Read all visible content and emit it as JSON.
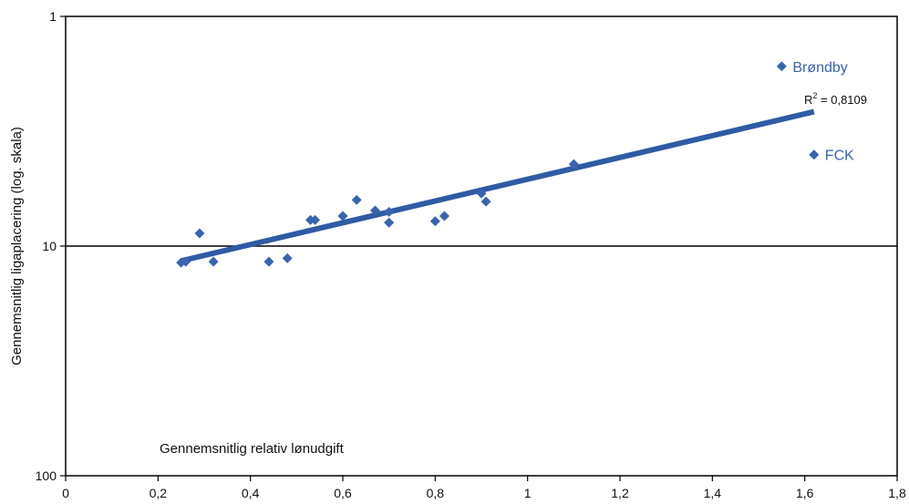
{
  "chart_data": {
    "type": "scatter",
    "xlabel": "Gennemsnitlig relativ lønudgift",
    "ylabel": "Gennemsnitlig ligaplacering (log. skala)",
    "xlim": [
      0,
      1.8
    ],
    "ylim": [
      100,
      1
    ],
    "y_scale": "log",
    "y_reversed": true,
    "x_ticks": [
      "0",
      "0,2",
      "0,4",
      "0,6",
      "0,8",
      "1",
      "1,2",
      "1,4",
      "1,6",
      "1,8"
    ],
    "x_tick_values": [
      0,
      0.2,
      0.4,
      0.6,
      0.8,
      1.0,
      1.2,
      1.4,
      1.6,
      1.8
    ],
    "y_ticks": [
      "1",
      "10",
      "100"
    ],
    "y_tick_values": [
      1,
      10,
      100
    ],
    "grid": false,
    "reference_line_y": 10,
    "marker_color": "#3a64ad",
    "trend_color": "#2f5ba5",
    "points": [
      {
        "x": 0.25,
        "y": 11.8
      },
      {
        "x": 0.26,
        "y": 11.7
      },
      {
        "x": 0.29,
        "y": 8.8
      },
      {
        "x": 0.32,
        "y": 11.7
      },
      {
        "x": 0.44,
        "y": 11.7
      },
      {
        "x": 0.48,
        "y": 11.3
      },
      {
        "x": 0.53,
        "y": 7.7
      },
      {
        "x": 0.54,
        "y": 7.7
      },
      {
        "x": 0.6,
        "y": 7.4
      },
      {
        "x": 0.63,
        "y": 6.3
      },
      {
        "x": 0.67,
        "y": 7.0
      },
      {
        "x": 0.7,
        "y": 7.1
      },
      {
        "x": 0.7,
        "y": 7.9
      },
      {
        "x": 0.8,
        "y": 7.8
      },
      {
        "x": 0.82,
        "y": 7.4
      },
      {
        "x": 0.9,
        "y": 5.9
      },
      {
        "x": 0.91,
        "y": 6.4
      },
      {
        "x": 1.1,
        "y": 4.4
      },
      {
        "x": 1.55,
        "y": 1.65,
        "label": "Brøndby"
      },
      {
        "x": 1.62,
        "y": 4.0,
        "label": "FCK"
      }
    ],
    "trendline": {
      "x": [
        0.25,
        1.62
      ],
      "y": [
        11.6,
        2.6
      ]
    },
    "annotation": {
      "text": "R² = 0,8109"
    }
  }
}
